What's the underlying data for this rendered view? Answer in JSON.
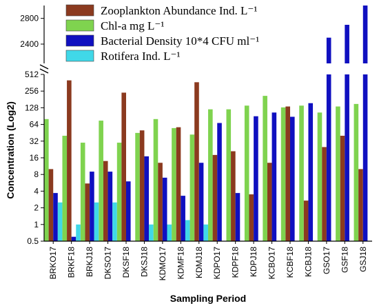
{
  "chart_data": {
    "type": "bar",
    "title": "",
    "xlabel": "Sampling Period",
    "ylabel": "Concentration (Log2)",
    "categories": [
      "BRKO17",
      "BRKF18",
      "BRKJ18",
      "DKSO17",
      "DKSF18",
      "DKSJ18",
      "KDMO17",
      "KDMF18",
      "KDMJ18",
      "KDPO17",
      "KDPF18",
      "KDPJ18",
      "KCBO17",
      "KCBF18",
      "KCBJ18",
      "GSO17",
      "GSF18",
      "GSJ18"
    ],
    "y_scale": "log2, broken axis",
    "lower_segment": {
      "ylim": [
        0.5,
        512
      ],
      "ticks": [
        "0.5",
        "1",
        "2",
        "4",
        "8",
        "16",
        "32",
        "64",
        "128",
        "256",
        "512"
      ]
    },
    "upper_segment": {
      "ylim": [
        2100,
        3000
      ],
      "ticks": [
        "2400",
        "2800"
      ]
    },
    "legend_placement": "top-left",
    "series": [
      {
        "name": "Chl-a mg L⁻¹",
        "color": "#7fd34f",
        "values": [
          80,
          40,
          30,
          75,
          30,
          45,
          80,
          55,
          42,
          120,
          120,
          140,
          210,
          130,
          140,
          105,
          135,
          150
        ]
      },
      {
        "name": "Zooplankton Abundance Ind. L⁻¹",
        "color": "#8b3a1f",
        "values": [
          10,
          400,
          5.5,
          14,
          240,
          50,
          13,
          57,
          370,
          18,
          21,
          3.5,
          13,
          135,
          2.7,
          25,
          40,
          10
        ]
      },
      {
        "name": "Bacterial Density 10*4 CFU ml⁻¹",
        "color": "#1010c0",
        "values": [
          3.7,
          0.6,
          9,
          9,
          6,
          17,
          7,
          3.3,
          13,
          68,
          3.7,
          90,
          105,
          88,
          155,
          2500,
          2700,
          3000
        ]
      },
      {
        "name": "Rotifera Ind. L⁻¹",
        "color": "#40d8e8",
        "values": [
          2.5,
          1,
          2.5,
          2.5,
          null,
          1,
          1,
          1.2,
          1,
          null,
          null,
          null,
          null,
          null,
          null,
          null,
          null,
          null
        ]
      }
    ],
    "legend_order": [
      1,
      0,
      2,
      3
    ]
  }
}
